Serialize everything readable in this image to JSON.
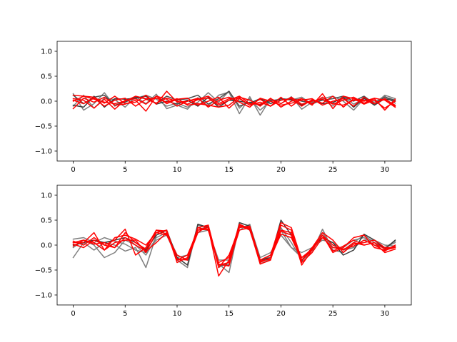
{
  "chart_data": [
    {
      "type": "line",
      "title": "",
      "xlabel": "",
      "ylabel": "",
      "xlim": [
        -1.55,
        32.55
      ],
      "ylim": [
        -1.2,
        1.2
      ],
      "xticks": [
        0,
        5,
        10,
        15,
        20,
        25,
        30
      ],
      "yticks": [
        -1.0,
        -0.5,
        0.0,
        0.5,
        1.0
      ],
      "xtick_labels": [
        "0",
        "5",
        "10",
        "15",
        "20",
        "25",
        "30"
      ],
      "ytick_labels": [
        "−1.0",
        "−0.5",
        "0.0",
        "0.5",
        "1.0"
      ],
      "x": [
        0,
        1,
        2,
        3,
        4,
        5,
        6,
        7,
        8,
        9,
        10,
        11,
        12,
        13,
        14,
        15,
        16,
        17,
        18,
        19,
        20,
        21,
        22,
        23,
        24,
        25,
        26,
        27,
        28,
        29,
        30,
        31
      ],
      "series": [
        {
          "color": "#7f7f7f",
          "values": [
            0.15,
            -0.18,
            -0.05,
            0.17,
            -0.1,
            0.0,
            0.05,
            0.12,
            0.04,
            -0.1,
            -0.04,
            -0.12,
            -0.02,
            0.17,
            -0.02,
            0.2,
            -0.14,
            0.05,
            -0.18,
            0.0,
            0.05,
            0.02,
            0.08,
            -0.06,
            0.03,
            -0.1,
            0.1,
            -0.06,
            0.05,
            -0.02,
            0.1,
            -0.04
          ]
        },
        {
          "color": "#7f7f7f",
          "values": [
            -0.1,
            0.12,
            -0.14,
            0.06,
            0.03,
            -0.12,
            0.09,
            -0.05,
            0.14,
            -0.15,
            -0.08,
            -0.16,
            0.07,
            -0.1,
            0.12,
            0.18,
            -0.25,
            0.09,
            -0.28,
            0.05,
            -0.05,
            0.09,
            -0.16,
            -0.02,
            0.05,
            0.1,
            0.0,
            -0.18,
            0.05,
            -0.06,
            0.12,
            0.05
          ]
        },
        {
          "color": "#4c4c4c",
          "values": [
            0.12,
            -0.05,
            0.08,
            0.12,
            -0.08,
            -0.02,
            0.08,
            0.05,
            -0.04,
            0.1,
            0.02,
            0.05,
            0.12,
            -0.06,
            0.05,
            0.2,
            -0.1,
            -0.02,
            -0.08,
            0.02,
            0.02,
            0.06,
            0.0,
            -0.04,
            0.02,
            0.05,
            0.1,
            0.0,
            0.1,
            -0.05,
            0.08,
            0.02
          ]
        },
        {
          "color": "#3a3a3a",
          "values": [
            -0.08,
            -0.12,
            0.1,
            -0.12,
            0.05,
            0.04,
            0.06,
            0.1,
            -0.06,
            0.0,
            -0.06,
            0.02,
            -0.1,
            0.08,
            -0.12,
            0.02,
            0.0,
            -0.04,
            0.05,
            -0.05,
            0.05,
            0.03,
            -0.08,
            0.02,
            -0.05,
            -0.03,
            0.08,
            -0.12,
            0.06,
            -0.08,
            0.05,
            0.0
          ]
        },
        {
          "color": "#ff0000",
          "values": [
            0.12,
            0.1,
            0.08,
            -0.04,
            0.1,
            -0.05,
            -0.02,
            0.12,
            -0.06,
            0.2,
            -0.02,
            0.0,
            0.04,
            0.1,
            -0.05,
            0.05,
            0.06,
            -0.08,
            -0.02,
            -0.1,
            0.08,
            -0.1,
            0.05,
            -0.08,
            0.15,
            -0.15,
            0.1,
            0.05,
            0.02,
            -0.05,
            0.05,
            -0.1
          ]
        },
        {
          "color": "#ff0000",
          "values": [
            0.05,
            0.02,
            -0.14,
            0.04,
            -0.16,
            0.02,
            0.05,
            -0.06,
            0.1,
            -0.05,
            0.04,
            0.06,
            -0.08,
            0.0,
            0.08,
            -0.14,
            0.05,
            -0.08,
            0.04,
            -0.1,
            0.02,
            0.05,
            -0.1,
            0.03,
            -0.04,
            0.1,
            -0.12,
            0.05,
            -0.06,
            0.02,
            -0.14,
            0.0
          ]
        },
        {
          "color": "#ff0000",
          "values": [
            -0.15,
            0.06,
            -0.02,
            0.08,
            -0.08,
            -0.06,
            0.02,
            -0.2,
            0.1,
            0.04,
            -0.1,
            0.0,
            0.06,
            -0.12,
            0.02,
            0.08,
            -0.02,
            -0.12,
            0.06,
            0.0,
            -0.08,
            -0.04,
            0.02,
            0.05,
            -0.08,
            0.0,
            0.05,
            -0.1,
            0.08,
            -0.05,
            0.04,
            -0.08
          ]
        },
        {
          "color": "#ff0000",
          "values": [
            0.02,
            -0.05,
            0.06,
            -0.1,
            0.02,
            0.06,
            -0.1,
            0.04,
            -0.04,
            0.06,
            0.0,
            -0.06,
            0.03,
            0.06,
            -0.08,
            0.02,
            0.1,
            -0.05,
            -0.06,
            0.05,
            -0.05,
            0.08,
            -0.06,
            0.0,
            0.04,
            -0.06,
            0.02,
            0.08,
            -0.04,
            0.05,
            -0.18,
            0.04
          ]
        },
        {
          "color": "#ff0000",
          "values": [
            0.0,
            0.1,
            0.04,
            -0.02,
            -0.05,
            0.0,
            0.1,
            0.05,
            0.06,
            -0.02,
            0.05,
            -0.08,
            -0.05,
            -0.08,
            -0.12,
            -0.08,
            0.08,
            0.02,
            -0.1,
            0.06,
            -0.12,
            0.0,
            0.05,
            -0.05,
            0.08,
            -0.05,
            -0.08,
            0.02,
            0.0,
            0.06,
            0.02,
            -0.12
          ]
        }
      ]
    },
    {
      "type": "line",
      "title": "",
      "xlabel": "",
      "ylabel": "",
      "xlim": [
        -1.55,
        32.55
      ],
      "ylim": [
        -1.2,
        1.2
      ],
      "xticks": [
        0,
        5,
        10,
        15,
        20,
        25,
        30
      ],
      "yticks": [
        -1.0,
        -0.5,
        0.0,
        0.5,
        1.0
      ],
      "xtick_labels": [
        "0",
        "5",
        "10",
        "15",
        "20",
        "25",
        "30"
      ],
      "ytick_labels": [
        "−1.0",
        "−0.5",
        "0.0",
        "0.5",
        "1.0"
      ],
      "x": [
        0,
        1,
        2,
        3,
        4,
        5,
        6,
        7,
        8,
        9,
        10,
        11,
        12,
        13,
        14,
        15,
        16,
        17,
        18,
        19,
        20,
        21,
        22,
        23,
        24,
        25,
        26,
        27,
        28,
        29,
        30,
        31
      ],
      "series": [
        {
          "color": "#7f7f7f",
          "values": [
            -0.25,
            0.05,
            -0.1,
            0.05,
            0.0,
            -0.12,
            -0.05,
            -0.45,
            0.2,
            0.3,
            -0.3,
            -0.45,
            0.4,
            0.35,
            -0.38,
            -0.55,
            0.4,
            0.3,
            -0.35,
            -0.2,
            0.35,
            0.05,
            -0.3,
            -0.15,
            0.32,
            -0.1,
            -0.15,
            0.05,
            0.2,
            0.05,
            -0.05,
            0.08
          ]
        },
        {
          "color": "#7f7f7f",
          "values": [
            0.12,
            0.15,
            0.05,
            0.15,
            0.08,
            0.02,
            -0.1,
            -0.15,
            0.1,
            0.2,
            -0.25,
            -0.2,
            0.25,
            0.3,
            -0.3,
            -0.3,
            0.35,
            0.4,
            -0.25,
            -0.15,
            0.2,
            -0.05,
            -0.15,
            -0.05,
            0.1,
            0.05,
            -0.1,
            -0.05,
            0.1,
            0.1,
            0.0,
            -0.02
          ]
        },
        {
          "color": "#7f7f7f",
          "values": [
            -0.05,
            0.1,
            0.0,
            -0.25,
            -0.15,
            0.1,
            0.0,
            -0.2,
            0.15,
            0.25,
            -0.2,
            -0.3,
            0.3,
            0.38,
            -0.45,
            -0.35,
            0.3,
            0.42,
            -0.38,
            -0.28,
            0.3,
            -0.05,
            -0.25,
            -0.1,
            0.25,
            -0.05,
            -0.05,
            0.1,
            0.15,
            0.0,
            -0.05,
            0.05
          ]
        },
        {
          "color": "#3a3a3a",
          "values": [
            0.0,
            0.05,
            0.1,
            0.05,
            0.1,
            0.15,
            0.05,
            -0.1,
            0.2,
            0.3,
            -0.25,
            -0.4,
            0.42,
            0.35,
            -0.4,
            -0.4,
            0.45,
            0.38,
            -0.3,
            -0.25,
            0.5,
            0.2,
            -0.32,
            -0.05,
            0.15,
            0.05,
            -0.2,
            -0.1,
            0.22,
            0.1,
            -0.08,
            0.1
          ]
        },
        {
          "color": "#ff0000",
          "values": [
            0.05,
            0.05,
            0.25,
            -0.1,
            0.05,
            0.1,
            0.1,
            -0.15,
            0.25,
            0.3,
            -0.3,
            -0.28,
            0.3,
            0.35,
            -0.62,
            -0.3,
            0.42,
            0.32,
            -0.38,
            -0.3,
            0.4,
            0.3,
            -0.4,
            -0.1,
            0.2,
            -0.15,
            -0.05,
            0.15,
            0.2,
            -0.05,
            -0.1,
            -0.05
          ]
        },
        {
          "color": "#ff0000",
          "values": [
            0.02,
            -0.05,
            0.1,
            0.0,
            0.1,
            0.32,
            -0.2,
            -0.05,
            0.3,
            0.28,
            -0.35,
            -0.25,
            0.35,
            0.4,
            -0.45,
            -0.2,
            0.35,
            0.38,
            -0.3,
            -0.2,
            0.45,
            0.35,
            -0.3,
            -0.1,
            0.2,
            0.0,
            -0.1,
            0.05,
            0.0,
            0.05,
            -0.15,
            -0.08
          ]
        },
        {
          "color": "#ff0000",
          "values": [
            -0.02,
            0.1,
            0.05,
            -0.1,
            0.15,
            0.2,
            0.12,
            0.0,
            0.25,
            0.2,
            -0.2,
            -0.3,
            0.25,
            0.4,
            -0.4,
            -0.35,
            0.3,
            0.35,
            -0.35,
            -0.25,
            0.22,
            0.15,
            -0.3,
            -0.05,
            0.25,
            0.1,
            -0.15,
            0.02,
            0.05,
            0.1,
            -0.05,
            -0.05
          ]
        },
        {
          "color": "#ff0000",
          "values": [
            0.08,
            0.0,
            0.15,
            0.0,
            -0.05,
            0.15,
            0.0,
            -0.12,
            0.05,
            0.25,
            -0.3,
            -0.2,
            0.3,
            0.32,
            -0.35,
            -0.25,
            0.4,
            0.3,
            -0.3,
            -0.2,
            0.3,
            0.25,
            -0.35,
            -0.15,
            0.15,
            -0.05,
            -0.08,
            -0.02,
            0.1,
            0.0,
            -0.12,
            0.0
          ]
        },
        {
          "color": "#ff0000",
          "values": [
            0.05,
            0.1,
            0.02,
            0.05,
            -0.05,
            0.25,
            0.05,
            -0.08,
            0.3,
            0.22,
            -0.28,
            -0.3,
            0.35,
            0.3,
            -0.38,
            -0.42,
            0.38,
            0.35,
            -0.32,
            -0.28,
            0.28,
            0.2,
            -0.25,
            -0.08,
            0.2,
            -0.12,
            -0.02,
            0.1,
            0.0,
            0.05,
            -0.08,
            -0.03
          ]
        }
      ]
    }
  ]
}
